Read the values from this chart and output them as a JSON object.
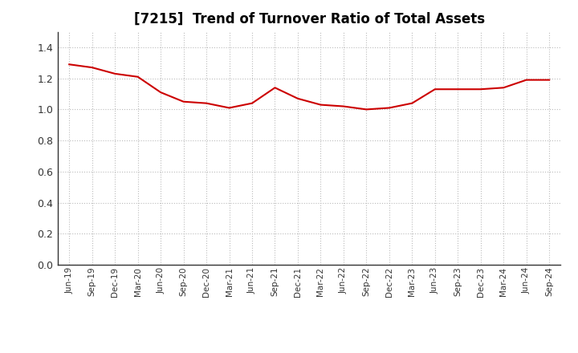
{
  "title": "[7215]  Trend of Turnover Ratio of Total Assets",
  "title_fontsize": 12,
  "line_color": "#cc0000",
  "line_width": 1.5,
  "background_color": "#ffffff",
  "grid_color": "#bbbbbb",
  "ylim": [
    0.0,
    1.5
  ],
  "yticks": [
    0.0,
    0.2,
    0.4,
    0.6,
    0.8,
    1.0,
    1.2,
    1.4
  ],
  "x_labels": [
    "Jun-19",
    "Sep-19",
    "Dec-19",
    "Mar-20",
    "Jun-20",
    "Sep-20",
    "Dec-20",
    "Mar-21",
    "Jun-21",
    "Sep-21",
    "Dec-21",
    "Mar-22",
    "Jun-22",
    "Sep-22",
    "Dec-22",
    "Mar-23",
    "Jun-23",
    "Sep-23",
    "Dec-23",
    "Mar-24",
    "Jun-24",
    "Sep-24"
  ],
  "y_values": [
    1.29,
    1.27,
    1.23,
    1.21,
    1.11,
    1.05,
    1.04,
    1.01,
    1.04,
    1.14,
    1.07,
    1.03,
    1.02,
    1.0,
    1.01,
    1.04,
    1.13,
    1.13,
    1.13,
    1.14,
    1.19,
    1.19
  ]
}
